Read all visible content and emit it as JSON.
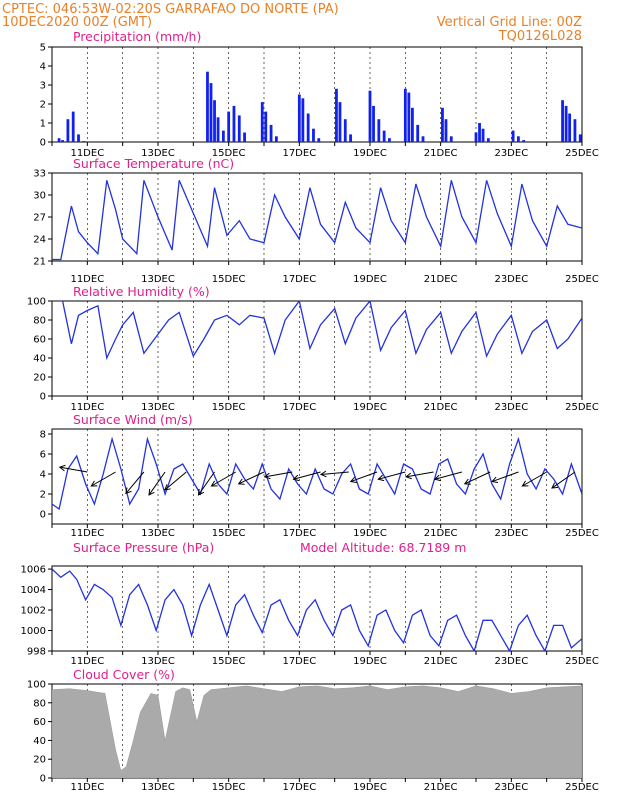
{
  "header": {
    "line1_left": "CPTEC:   046:53W-02:20S  GARRAFAO DO NORTE (PA)",
    "line2_left": "10DEC2020 00Z (GMT)",
    "line2_right": "Vertical Grid Line: 00Z",
    "line3_right": "TQ0126L028"
  },
  "colors": {
    "header": "#e8812a",
    "panel_title": "#e0208a",
    "series_line": "#2233dd",
    "precip_bar": "#1122ee",
    "cloud_fill": "#aaaaaa",
    "wind_arrow": "#000000"
  },
  "chart_data": [
    {
      "type": "bar",
      "title": "Precipitation (mm/h)",
      "x_unit": "days since 10DEC2020 00Z",
      "date_labels": [
        "11DEC",
        "13DEC",
        "15DEC",
        "17DEC",
        "19DEC",
        "21DEC",
        "23DEC",
        "25DEC"
      ],
      "ylim": [
        0,
        5
      ],
      "yticks": [
        0,
        1,
        2,
        3,
        4,
        5
      ],
      "grid": "vertical dashed at 00Z",
      "x": [
        0.2,
        0.3,
        0.45,
        0.6,
        0.75,
        0.9,
        4.4,
        4.5,
        4.6,
        4.7,
        4.85,
        5.0,
        5.15,
        5.3,
        5.45,
        5.95,
        6.05,
        6.2,
        6.35,
        7.0,
        7.1,
        7.25,
        7.4,
        7.55,
        8.05,
        8.15,
        8.3,
        8.45,
        9.0,
        9.1,
        9.25,
        9.4,
        9.55,
        10.0,
        10.1,
        10.2,
        10.35,
        10.5,
        11.05,
        11.15,
        11.3,
        12.0,
        12.1,
        12.2,
        12.35,
        13.05,
        13.2,
        13.35,
        14.45,
        14.55,
        14.65,
        14.8,
        14.95
      ],
      "values": [
        0.2,
        0.1,
        1.2,
        1.6,
        0.4,
        0.05,
        3.7,
        3.1,
        2.2,
        1.3,
        0.6,
        1.6,
        1.9,
        1.4,
        0.5,
        2.1,
        1.6,
        0.9,
        0.3,
        2.5,
        2.3,
        1.5,
        0.7,
        0.2,
        2.8,
        2.1,
        1.2,
        0.4,
        2.7,
        1.9,
        1.2,
        0.6,
        0.2,
        2.8,
        2.6,
        1.8,
        0.9,
        0.3,
        1.8,
        1.2,
        0.3,
        0.5,
        1.0,
        0.7,
        0.2,
        0.6,
        0.3,
        0.1,
        2.2,
        1.9,
        1.5,
        1.2,
        0.4
      ]
    },
    {
      "type": "line",
      "title": "Surface Temperature (nC)",
      "ylim": [
        21,
        33
      ],
      "yticks": [
        21,
        24,
        27,
        30,
        33
      ],
      "x": [
        0,
        0.25,
        0.55,
        0.75,
        1.0,
        1.3,
        1.55,
        1.8,
        2.0,
        2.4,
        2.6,
        3.0,
        3.4,
        3.6,
        4.0,
        4.4,
        4.6,
        4.95,
        5.3,
        5.6,
        6.0,
        6.3,
        6.6,
        7.0,
        7.3,
        7.6,
        8.0,
        8.3,
        8.6,
        9.0,
        9.3,
        9.6,
        10.0,
        10.3,
        10.6,
        11.0,
        11.3,
        11.6,
        12.0,
        12.3,
        12.6,
        13.0,
        13.3,
        13.6,
        14.0,
        14.3,
        14.6,
        15.0
      ],
      "values": [
        21.2,
        21.2,
        28.5,
        25.0,
        23.5,
        22.0,
        32.0,
        28.0,
        24.0,
        22.0,
        32.0,
        27.0,
        22.5,
        32.0,
        27.5,
        23.0,
        31.0,
        24.5,
        26.5,
        24.0,
        23.5,
        30.0,
        27.0,
        24.0,
        31.0,
        26.0,
        23.5,
        29.0,
        25.5,
        23.5,
        31.0,
        26.5,
        23.5,
        31.5,
        27.0,
        23.0,
        32.0,
        27.0,
        23.5,
        32.0,
        27.5,
        23.0,
        31.5,
        26.5,
        23.0,
        28.5,
        26.0,
        25.5
      ]
    },
    {
      "type": "line",
      "title": "Relative Humidity (%)",
      "ylim": [
        0,
        100
      ],
      "yticks": [
        0,
        20,
        40,
        60,
        80,
        100
      ],
      "x": [
        0,
        0.3,
        0.55,
        0.75,
        1.0,
        1.3,
        1.55,
        1.8,
        2.0,
        2.3,
        2.6,
        3.0,
        3.3,
        3.6,
        4.0,
        4.3,
        4.6,
        4.95,
        5.3,
        5.6,
        6.0,
        6.3,
        6.6,
        7.0,
        7.3,
        7.6,
        8.0,
        8.3,
        8.6,
        9.0,
        9.3,
        9.6,
        10.0,
        10.3,
        10.6,
        11.0,
        11.3,
        11.6,
        12.0,
        12.3,
        12.6,
        13.0,
        13.3,
        13.6,
        14.0,
        14.3,
        14.6,
        15.0
      ],
      "values": [
        100,
        100,
        55,
        85,
        90,
        95,
        40,
        60,
        75,
        88,
        45,
        65,
        80,
        88,
        42,
        60,
        80,
        85,
        75,
        85,
        82,
        45,
        80,
        100,
        50,
        75,
        92,
        55,
        82,
        100,
        48,
        72,
        90,
        45,
        70,
        88,
        45,
        68,
        88,
        42,
        65,
        85,
        45,
        68,
        80,
        50,
        60,
        82
      ]
    },
    {
      "type": "line",
      "title": "Surface Wind (m/s)",
      "ylim": [
        -1,
        8.5
      ],
      "yticks": [
        0,
        2,
        4,
        6,
        8
      ],
      "x": [
        0,
        0.2,
        0.45,
        0.7,
        0.95,
        1.2,
        1.45,
        1.7,
        1.95,
        2.2,
        2.45,
        2.7,
        2.95,
        3.2,
        3.45,
        3.7,
        3.95,
        4.2,
        4.45,
        4.7,
        4.95,
        5.2,
        5.45,
        5.7,
        5.95,
        6.2,
        6.45,
        6.7,
        6.95,
        7.2,
        7.45,
        7.7,
        7.95,
        8.2,
        8.45,
        8.7,
        8.95,
        9.2,
        9.45,
        9.7,
        9.95,
        10.2,
        10.45,
        10.7,
        10.95,
        11.2,
        11.45,
        11.7,
        11.95,
        12.2,
        12.45,
        12.7,
        12.95,
        13.2,
        13.45,
        13.7,
        13.95,
        14.2,
        14.45,
        14.7,
        15.0
      ],
      "values": [
        1.0,
        0.5,
        4.5,
        5.8,
        3.0,
        1.0,
        4.0,
        7.5,
        4.5,
        1.0,
        2.5,
        7.5,
        5.0,
        2.0,
        4.5,
        5.0,
        3.5,
        2.0,
        5.0,
        3.0,
        2.0,
        5.0,
        3.5,
        2.5,
        5.0,
        2.5,
        1.5,
        4.5,
        3.0,
        2.0,
        4.5,
        2.5,
        2.0,
        4.0,
        5.0,
        2.5,
        2.0,
        5.0,
        3.5,
        2.0,
        5.0,
        4.5,
        2.5,
        2.0,
        5.0,
        5.5,
        3.0,
        2.0,
        4.5,
        6.0,
        3.0,
        1.5,
        5.0,
        7.5,
        4.0,
        2.5,
        4.5,
        3.5,
        2.0,
        5.0,
        2.0
      ],
      "arrow_x": [
        0.0,
        1.0,
        1.8,
        2.6,
        3.2,
        3.8,
        4.6,
        5.2,
        6.0,
        6.8,
        7.6,
        8.4,
        9.2,
        10.0,
        10.8,
        11.6,
        12.4,
        13.2,
        14.0,
        14.8
      ],
      "arrow_dir_deg": [
        180,
        170,
        210,
        230,
        235,
        220,
        235,
        210,
        205,
        190,
        195,
        185,
        200,
        195,
        190,
        195,
        205,
        200,
        210,
        215
      ]
    },
    {
      "type": "line",
      "title": "Surface Pressure (hPa)",
      "annotation": "Model Altitude: 68.7189 m",
      "ylim": [
        998,
        1006.3
      ],
      "yticks": [
        998,
        1000,
        1002,
        1004,
        1006
      ],
      "x": [
        0,
        0.25,
        0.5,
        0.7,
        0.95,
        1.2,
        1.45,
        1.7,
        1.95,
        2.2,
        2.45,
        2.7,
        2.95,
        3.2,
        3.45,
        3.7,
        3.95,
        4.2,
        4.45,
        4.7,
        4.95,
        5.2,
        5.45,
        5.7,
        5.95,
        6.2,
        6.45,
        6.7,
        6.95,
        7.2,
        7.45,
        7.7,
        7.95,
        8.2,
        8.45,
        8.7,
        8.95,
        9.2,
        9.45,
        9.7,
        9.95,
        10.2,
        10.45,
        10.7,
        10.95,
        11.2,
        11.45,
        11.7,
        11.95,
        12.2,
        12.45,
        12.7,
        12.95,
        13.2,
        13.45,
        13.7,
        13.95,
        14.2,
        14.45,
        14.7,
        15.0
      ],
      "values": [
        1006.0,
        1005.2,
        1005.8,
        1005.0,
        1003.0,
        1004.5,
        1004.0,
        1003.2,
        1000.5,
        1003.5,
        1004.5,
        1002.5,
        1000.0,
        1003.0,
        1004.0,
        1002.5,
        999.5,
        1002.5,
        1004.5,
        1002.0,
        999.5,
        1002.5,
        1003.5,
        1001.5,
        999.8,
        1002.5,
        1003.0,
        1001.0,
        999.5,
        1002.0,
        1003.0,
        1001.0,
        999.5,
        1002.0,
        1002.5,
        1000.0,
        998.5,
        1001.5,
        1002.0,
        1000.0,
        998.8,
        1001.5,
        1002.0,
        999.5,
        998.5,
        1001.0,
        1001.5,
        999.5,
        998.0,
        1001.0,
        1001.0,
        999.5,
        998.0,
        1000.5,
        1001.5,
        999.5,
        998.0,
        1000.5,
        1000.5,
        998.3,
        999.2
      ]
    },
    {
      "type": "area",
      "title": "Cloud Cover (%)",
      "ylim": [
        0,
        100
      ],
      "yticks": [
        0,
        20,
        40,
        60,
        80,
        100
      ],
      "x": [
        0,
        0.5,
        1.0,
        1.5,
        1.8,
        1.95,
        2.1,
        2.3,
        2.5,
        2.8,
        3.0,
        3.2,
        3.5,
        3.7,
        3.9,
        4.1,
        4.3,
        4.5,
        5.0,
        5.5,
        6.0,
        6.5,
        7.0,
        7.5,
        8.0,
        8.5,
        9.0,
        9.5,
        10.0,
        10.5,
        11.0,
        11.5,
        12.0,
        12.5,
        13.0,
        13.5,
        14.0,
        14.5,
        15.0
      ],
      "values": [
        94,
        95,
        93,
        90,
        30,
        8,
        12,
        40,
        70,
        90,
        88,
        40,
        92,
        96,
        94,
        60,
        88,
        94,
        96,
        98,
        95,
        92,
        97,
        98,
        95,
        96,
        98,
        94,
        97,
        98,
        96,
        92,
        98,
        95,
        90,
        92,
        96,
        97,
        98
      ]
    }
  ]
}
